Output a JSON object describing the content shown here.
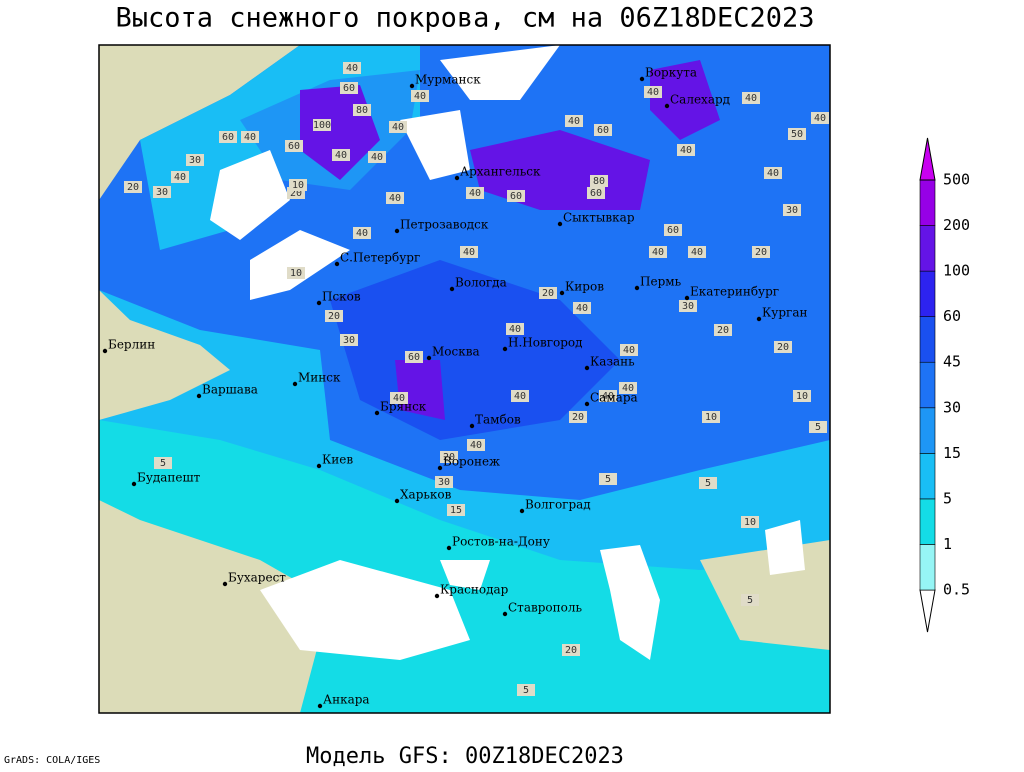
{
  "title": "Высота снежного покрова, см на 06Z18DEC2023",
  "footer": {
    "model": "Модель GFS: 00Z18DEC2023",
    "credit": "GrADS: COLA/IGES"
  },
  "cities": [
    "Мурманск",
    "Воркута",
    "Салехард",
    "Архангельск",
    "Петрозаводск",
    "Сыктывкар",
    "С.Петербург",
    "Вологда",
    "Киров",
    "Пермь",
    "Екатеринбург",
    "Курган",
    "Псков",
    "Берлин",
    "Н.Новгород",
    "Москва",
    "Казань",
    "Минск",
    "Варшава",
    "Самара",
    "Брянск",
    "Тамбов",
    "Киев",
    "Воронеж",
    "Будапешт",
    "Харьков",
    "Волгоград",
    "Ростов-на-Дону",
    "Бухарест",
    "Краснодар",
    "Ставрополь",
    "Анкара"
  ],
  "contour_labels": [
    40,
    60,
    80,
    100,
    40,
    40,
    60,
    40,
    60,
    30,
    40,
    20,
    30,
    40,
    40,
    20,
    10,
    40,
    40,
    40,
    60,
    40,
    60,
    80,
    60,
    40,
    40,
    50,
    40,
    40,
    40,
    30,
    60,
    40,
    40,
    20,
    10,
    40,
    20,
    40,
    20,
    30,
    30,
    20,
    20,
    40,
    40,
    60,
    40,
    40,
    40,
    40,
    10,
    10,
    5,
    20,
    40,
    20,
    5,
    5,
    30,
    15,
    10,
    5,
    5,
    20,
    5
  ],
  "legend": {
    "levels": [
      0.5,
      1,
      5,
      15,
      30,
      45,
      60,
      100,
      200,
      500
    ],
    "colors": [
      "#ffffff",
      "#96f5f5",
      "#14dce6",
      "#19bef5",
      "#1e96f5",
      "#1e73f5",
      "#1a50f0",
      "#2d23f0",
      "#6414e6",
      "#9600e6",
      "#c800f0"
    ]
  }
}
